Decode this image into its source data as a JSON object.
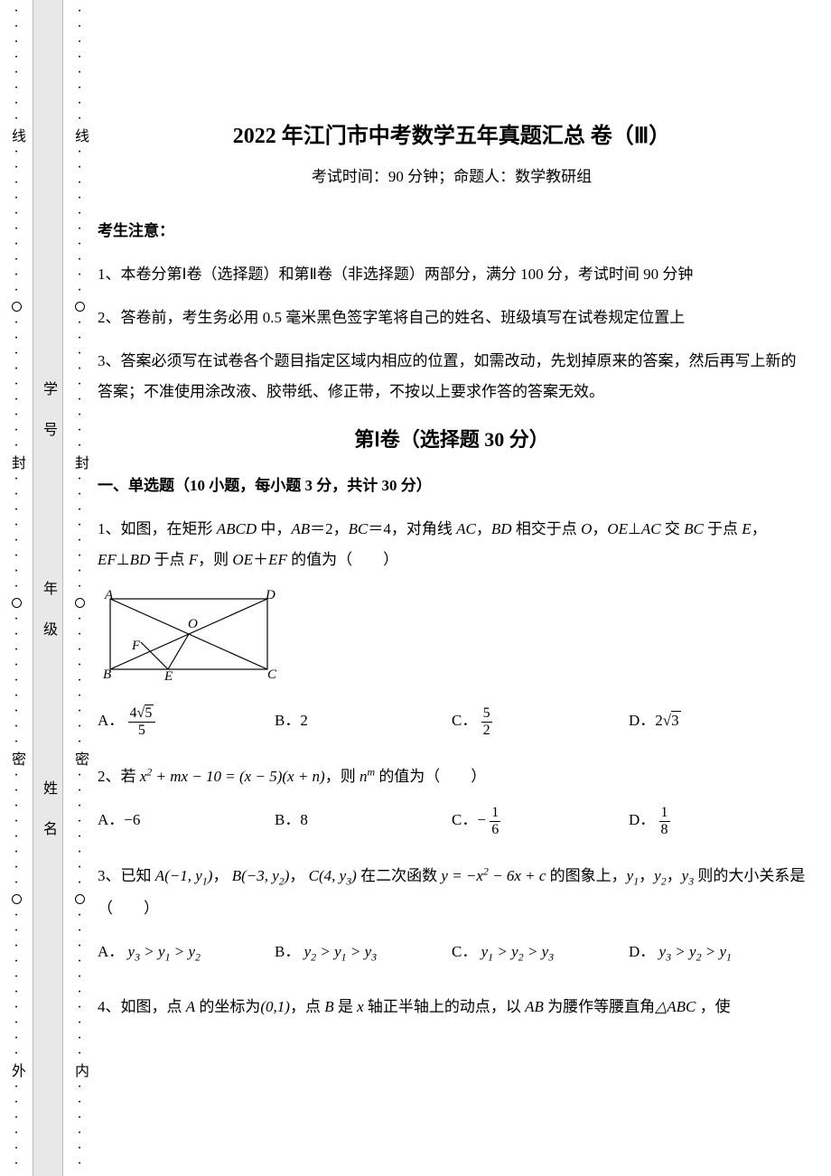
{
  "header": {
    "title": "2022 年江门市中考数学五年真题汇总 卷（Ⅲ）",
    "subtitle": "考试时间：90 分钟；命题人：数学教研组"
  },
  "notice": {
    "label": "考生注意：",
    "items": [
      "1、本卷分第Ⅰ卷（选择题）和第Ⅱ卷（非选择题）两部分，满分 100 分，考试时间 90 分钟",
      "2、答卷前，考生务必用 0.5 毫米黑色签字笔将自己的姓名、班级填写在试卷规定位置上",
      "3、答案必须写在试卷各个题目指定区域内相应的位置，如需改动，先划掉原来的答案，然后再写上新的答案；不准使用涂改液、胶带纸、修正带，不按以上要求作答的答案无效。"
    ]
  },
  "part1": {
    "heading": "第Ⅰ卷（选择题  30 分）",
    "section": "一、单选题（10 小题，每小题 3 分，共计 30 分）"
  },
  "q1": {
    "text_a": "1、如图，在矩形 ",
    "text_b": " 中，",
    "text_c": "＝2，",
    "text_d": "＝4，对角线 ",
    "text_e": "，",
    "text_f": " 相交于点 ",
    "text_g": "，",
    "text_h": "⊥",
    "text_i": " 交 ",
    "text_j": " 于点 ",
    "text_k": "，",
    "text_l": "⊥",
    "text_m": " 于点 ",
    "text_n": "，则 ",
    "text_o": "＋",
    "text_p": " 的值为（　　）",
    "ABCD": "ABCD",
    "AB": "AB",
    "BC": "BC",
    "AC": "AC",
    "BD": "BD",
    "O": "O",
    "OE": "OE",
    "E": "E",
    "EF": "EF",
    "F": "F",
    "optA_pre": "A．",
    "optA_num": "4",
    "optA_rad": "5",
    "optA_den": "5",
    "optB": "B．2",
    "optC_pre": "C．",
    "optC_num": "5",
    "optC_den": "2",
    "optD_pre": "D．2",
    "optD_rad": "3",
    "fig": {
      "width": 198,
      "height": 104,
      "stroke": "#000000",
      "stroke_width": 1.2,
      "labels": {
        "A": "A",
        "B": "B",
        "C": "C",
        "D": "D",
        "E": "E",
        "F": "F",
        "O": "O"
      }
    }
  },
  "q2": {
    "text_a": "2、若 ",
    "expr": "x² + mx − 10 = (x − 5)(x + n)",
    "text_b": "，则 ",
    "nm": "nᵐ",
    "text_c": " 的值为（　　）",
    "optA": "A．−6",
    "optB": "B．8",
    "optC_pre": "C．",
    "optC_sign": "−",
    "optC_num": "1",
    "optC_den": "6",
    "optD_pre": "D．",
    "optD_num": "1",
    "optD_den": "8"
  },
  "q3": {
    "text_a": "3、已知 ",
    "A": "A(−1, y₁)",
    "sep1": "， ",
    "B": "B(−3, y₂)",
    "sep2": "， ",
    "C": "C(4, y₃)",
    "text_b": " 在二次函数 ",
    "func": "y = −x² − 6x + c",
    "text_c": " 的图象上，",
    "y1": "y₁",
    "s1": "，",
    "y2": "y₂",
    "s2": "，",
    "y3": "y₃",
    "text_d": " 则的大小关系是（　　）",
    "optA_pre": "A． ",
    "optA": "y₃ > y₁ > y₂",
    "optB_pre": "B． ",
    "optB": "y₂ > y₁ > y₃",
    "optC_pre": "C． ",
    "optC": "y₁ > y₂ > y₃",
    "optD_pre": "D． ",
    "optD": "y₃ > y₂ > y₁"
  },
  "q4": {
    "text_a": "4、如图，点 ",
    "Alabel": "A",
    "text_b": " 的坐标为",
    "coord": "(0,1)",
    "text_c": "，点 ",
    "Blabel": "B",
    "text_d": " 是 ",
    "xaxis": "x",
    "text_e": " 轴正半轴上的动点，以 ",
    "ABlabel": "AB",
    "text_f": " 为腰作等腰直角",
    "tri": "△ABC",
    "text_g": " ，使"
  },
  "margin": {
    "outer_labels": [
      "线",
      "封",
      "密",
      "外"
    ],
    "inner_labels": [
      "线",
      "封",
      "密",
      "内"
    ],
    "band_labels": [
      "学 号",
      "年 级",
      "姓 名"
    ],
    "dot_char": "·",
    "dot_color": "#000000"
  },
  "colors": {
    "band_bg": "#e8e8e8",
    "band_border": "#bdbdbd"
  }
}
